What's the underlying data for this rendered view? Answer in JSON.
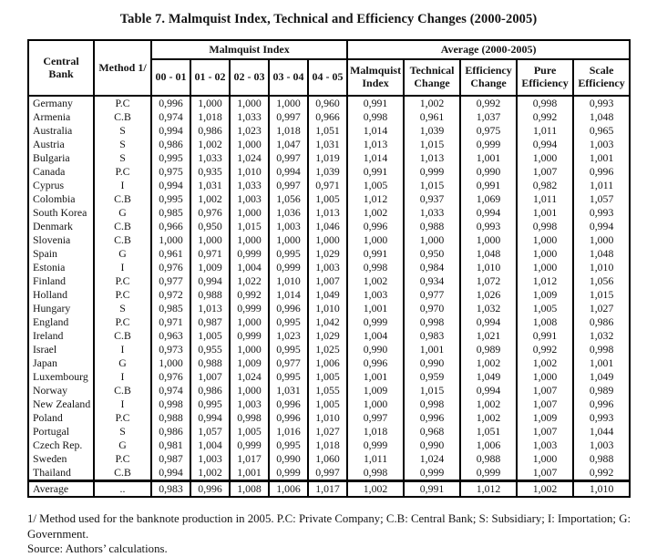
{
  "title": "Table 7. Malmquist Index, Technical and Efficiency Changes (2000-2005)",
  "table": {
    "col_headers": {
      "central_bank": "Central Bank",
      "method": "Method 1/",
      "malmquist_group": "Malmquist Index",
      "average_group": "Average (2000-2005)",
      "malmquist_years": [
        "00 - 01",
        "01 - 02",
        "02 - 03",
        "03 - 04",
        "04 - 05"
      ],
      "average_cols": [
        "Malmquist Index",
        "Technical Change",
        "Efficiency Change",
        "Pure Efficiency",
        "Scale Efficiency"
      ]
    },
    "rows": [
      {
        "bank": "Germany",
        "method": "P.C",
        "values": [
          "0,996",
          "1,000",
          "1,000",
          "1,000",
          "0,960",
          "0,991",
          "1,002",
          "0,992",
          "0,998",
          "0,993"
        ]
      },
      {
        "bank": "Armenia",
        "method": "C.B",
        "values": [
          "0,974",
          "1,018",
          "1,033",
          "0,997",
          "0,966",
          "0,998",
          "0,961",
          "1,037",
          "0,992",
          "1,048"
        ]
      },
      {
        "bank": "Australia",
        "method": "S",
        "values": [
          "0,994",
          "0,986",
          "1,023",
          "1,018",
          "1,051",
          "1,014",
          "1,039",
          "0,975",
          "1,011",
          "0,965"
        ]
      },
      {
        "bank": "Austria",
        "method": "S",
        "values": [
          "0,986",
          "1,002",
          "1,000",
          "1,047",
          "1,031",
          "1,013",
          "1,015",
          "0,999",
          "0,994",
          "1,003"
        ]
      },
      {
        "bank": "Bulgaria",
        "method": "S",
        "values": [
          "0,995",
          "1,033",
          "1,024",
          "0,997",
          "1,019",
          "1,014",
          "1,013",
          "1,001",
          "1,000",
          "1,001"
        ]
      },
      {
        "bank": "Canada",
        "method": "P.C",
        "values": [
          "0,975",
          "0,935",
          "1,010",
          "0,994",
          "1,039",
          "0,991",
          "0,999",
          "0,990",
          "1,007",
          "0,996"
        ]
      },
      {
        "bank": "Cyprus",
        "method": "I",
        "values": [
          "0,994",
          "1,031",
          "1,033",
          "0,997",
          "0,971",
          "1,005",
          "1,015",
          "0,991",
          "0,982",
          "1,011"
        ]
      },
      {
        "bank": "Colombia",
        "method": "C.B",
        "values": [
          "0,995",
          "1,002",
          "1,003",
          "1,056",
          "1,005",
          "1,012",
          "0,937",
          "1,069",
          "1,011",
          "1,057"
        ]
      },
      {
        "bank": "South Korea",
        "method": "G",
        "values": [
          "0,985",
          "0,976",
          "1,000",
          "1,036",
          "1,013",
          "1,002",
          "1,033",
          "0,994",
          "1,001",
          "0,993"
        ]
      },
      {
        "bank": "Denmark",
        "method": "C.B",
        "values": [
          "0,966",
          "0,950",
          "1,015",
          "1,003",
          "1,046",
          "0,996",
          "0,988",
          "0,993",
          "0,998",
          "0,994"
        ]
      },
      {
        "bank": "Slovenia",
        "method": "C.B",
        "values": [
          "1,000",
          "1,000",
          "1,000",
          "1,000",
          "1,000",
          "1,000",
          "1,000",
          "1,000",
          "1,000",
          "1,000"
        ]
      },
      {
        "bank": "Spain",
        "method": "G",
        "values": [
          "0,961",
          "0,971",
          "0,999",
          "0,995",
          "1,029",
          "0,991",
          "0,950",
          "1,048",
          "1,000",
          "1,048"
        ]
      },
      {
        "bank": "Estonia",
        "method": "I",
        "values": [
          "0,976",
          "1,009",
          "1,004",
          "0,999",
          "1,003",
          "0,998",
          "0,984",
          "1,010",
          "1,000",
          "1,010"
        ]
      },
      {
        "bank": "Finland",
        "method": "P.C",
        "values": [
          "0,977",
          "0,994",
          "1,022",
          "1,010",
          "1,007",
          "1,002",
          "0,934",
          "1,072",
          "1,012",
          "1,056"
        ]
      },
      {
        "bank": "Holland",
        "method": "P.C",
        "values": [
          "0,972",
          "0,988",
          "0,992",
          "1,014",
          "1,049",
          "1,003",
          "0,977",
          "1,026",
          "1,009",
          "1,015"
        ]
      },
      {
        "bank": "Hungary",
        "method": "S",
        "values": [
          "0,985",
          "1,013",
          "0,999",
          "0,996",
          "1,010",
          "1,001",
          "0,970",
          "1,032",
          "1,005",
          "1,027"
        ]
      },
      {
        "bank": "England",
        "method": "P.C",
        "values": [
          "0,971",
          "0,987",
          "1,000",
          "0,995",
          "1,042",
          "0,999",
          "0,998",
          "0,994",
          "1,008",
          "0,986"
        ]
      },
      {
        "bank": "Ireland",
        "method": "C.B",
        "values": [
          "0,963",
          "1,005",
          "0,999",
          "1,023",
          "1,029",
          "1,004",
          "0,983",
          "1,021",
          "0,991",
          "1,032"
        ]
      },
      {
        "bank": "Israel",
        "method": "I",
        "values": [
          "0,973",
          "0,955",
          "1,000",
          "0,995",
          "1,025",
          "0,990",
          "1,001",
          "0,989",
          "0,992",
          "0,998"
        ]
      },
      {
        "bank": "Japan",
        "method": "G",
        "values": [
          "1,000",
          "0,988",
          "1,009",
          "0,977",
          "1,006",
          "0,996",
          "0,990",
          "1,002",
          "1,002",
          "1,001"
        ]
      },
      {
        "bank": "Luxembourg",
        "method": "I",
        "values": [
          "0,976",
          "1,007",
          "1,024",
          "0,995",
          "1,005",
          "1,001",
          "0,959",
          "1,049",
          "1,000",
          "1,049"
        ]
      },
      {
        "bank": "Norway",
        "method": "C.B",
        "values": [
          "0,974",
          "0,986",
          "1,000",
          "1,031",
          "1,055",
          "1,009",
          "1,015",
          "0,994",
          "1,007",
          "0,989"
        ]
      },
      {
        "bank": "New Zealand",
        "method": "I",
        "values": [
          "0,998",
          "0,995",
          "1,003",
          "0,996",
          "1,005",
          "1,000",
          "0,998",
          "1,002",
          "1,007",
          "0,996"
        ]
      },
      {
        "bank": "Poland",
        "method": "P.C",
        "values": [
          "0,988",
          "0,994",
          "0,998",
          "0,996",
          "1,010",
          "0,997",
          "0,996",
          "1,002",
          "1,009",
          "0,993"
        ]
      },
      {
        "bank": "Portugal",
        "method": "S",
        "values": [
          "0,986",
          "1,057",
          "1,005",
          "1,016",
          "1,027",
          "1,018",
          "0,968",
          "1,051",
          "1,007",
          "1,044"
        ]
      },
      {
        "bank": "Czech Rep.",
        "method": "G",
        "values": [
          "0,981",
          "1,004",
          "0,999",
          "0,995",
          "1,018",
          "0,999",
          "0,990",
          "1,006",
          "1,003",
          "1,003"
        ]
      },
      {
        "bank": "Sweden",
        "method": "P.C",
        "values": [
          "0,987",
          "1,003",
          "1,017",
          "0,990",
          "1,060",
          "1,011",
          "1,024",
          "0,988",
          "1,000",
          "0,988"
        ]
      },
      {
        "bank": "Thailand",
        "method": "C.B",
        "values": [
          "0,994",
          "1,002",
          "1,001",
          "0,999",
          "0,997",
          "0,998",
          "0,999",
          "0,999",
          "1,007",
          "0,992"
        ]
      }
    ],
    "average_row": {
      "bank": "Average",
      "method": "..",
      "values": [
        "0,983",
        "0,996",
        "1,008",
        "1,006",
        "1,017",
        "1,002",
        "0,991",
        "1,012",
        "1,002",
        "1,010"
      ]
    }
  },
  "footnotes": {
    "method_note": "1/ Method used for the banknote production in 2005. P.C: Private Company; C.B: Central Bank; S: Subsidiary; I: Importation; G: Government.",
    "source_note": "Source: Authors’ calculations."
  }
}
